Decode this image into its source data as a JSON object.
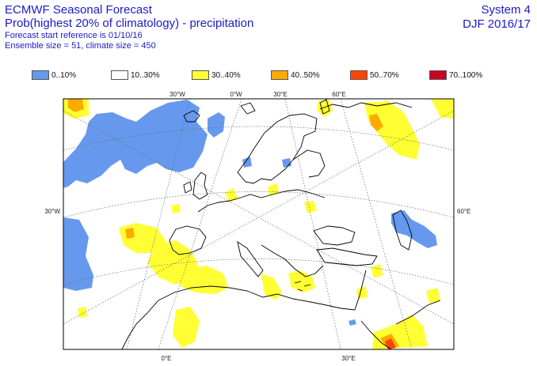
{
  "header": {
    "title": "ECMWF Seasonal Forecast",
    "subtitle": "Prob(highest 20% of climatology) - precipitation",
    "forecast_ref": "Forecast start reference is 01/10/16",
    "ensemble": "Ensemble size = 51, climate size = 450",
    "system": "System 4",
    "season": "DJF 2016/17"
  },
  "legend": [
    {
      "label": "0..10%",
      "color": "#6699ee"
    },
    {
      "label": "10..30%",
      "color": "#ffffff"
    },
    {
      "label": "30..40%",
      "color": "#ffff33"
    },
    {
      "label": "40..50%",
      "color": "#ffaa00"
    },
    {
      "label": "50..70%",
      "color": "#ff4400"
    },
    {
      "label": "70..100%",
      "color": "#cc0022"
    }
  ],
  "map": {
    "lon_labels_top": [
      "30°W",
      "0°W",
      "30°E",
      "60°E"
    ],
    "lon_labels_bottom": [
      "0°E",
      "30°E"
    ],
    "lat_labels": [
      "30°W",
      "60°E"
    ],
    "coastline_color": "#000000",
    "grid_color": "#666666"
  }
}
